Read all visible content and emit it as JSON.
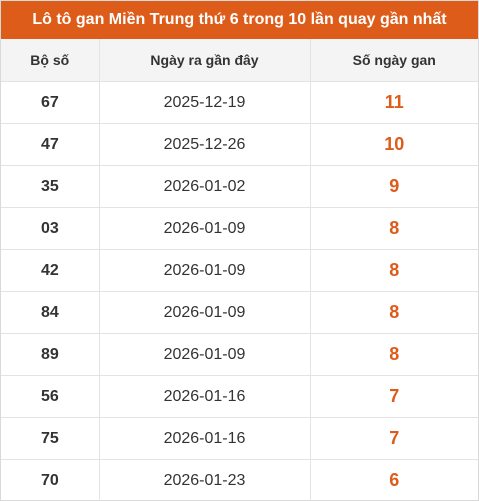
{
  "title": "Lô tô gan Miền Trung thứ 6 trong 10 lần quay gần nhất",
  "headers": {
    "number": "Bộ số",
    "date": "Ngày ra gần đây",
    "days": "Số ngày gan"
  },
  "rows": [
    {
      "number": "67",
      "date": "2025-12-19",
      "days": "11"
    },
    {
      "number": "47",
      "date": "2025-12-26",
      "days": "10"
    },
    {
      "number": "35",
      "date": "2026-01-02",
      "days": "9"
    },
    {
      "number": "03",
      "date": "2026-01-09",
      "days": "8"
    },
    {
      "number": "42",
      "date": "2026-01-09",
      "days": "8"
    },
    {
      "number": "84",
      "date": "2026-01-09",
      "days": "8"
    },
    {
      "number": "89",
      "date": "2026-01-09",
      "days": "8"
    },
    {
      "number": "56",
      "date": "2026-01-16",
      "days": "7"
    },
    {
      "number": "75",
      "date": "2026-01-16",
      "days": "7"
    },
    {
      "number": "70",
      "date": "2026-01-23",
      "days": "6"
    }
  ],
  "colors": {
    "accent": "#dd5c1a",
    "header_bg": "#f4f4f4",
    "text": "#333333"
  }
}
